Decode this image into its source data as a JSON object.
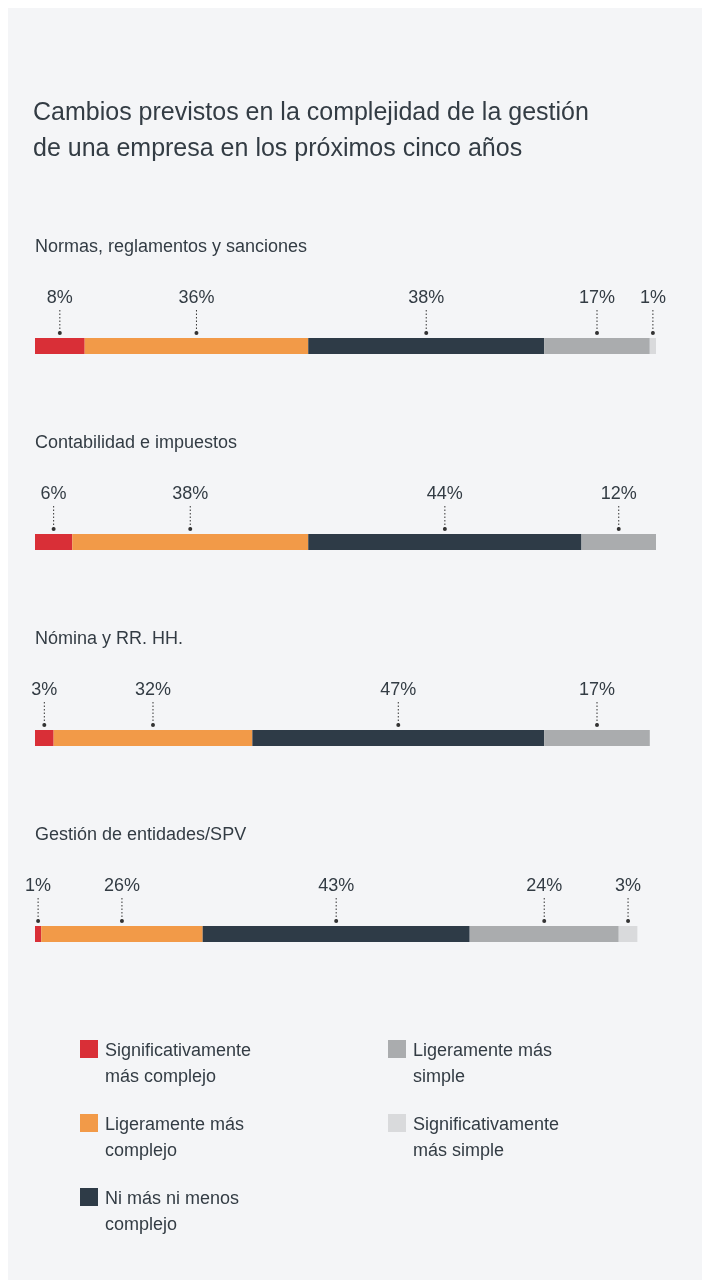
{
  "chart_data": {
    "type": "bar",
    "orientation": "horizontal",
    "stacked": true,
    "legend": "bottom",
    "title": "Cambios previstos en la complejidad de la gestión de una empresa en los próximos cinco años",
    "categories": [
      "Normas, reglamentos y sanciones",
      "Contabilidad e impuestos",
      "Nómina y RR. HH.",
      "Gestión de entidades/SPV"
    ],
    "series": [
      {
        "name": "Significativamente más complejo",
        "color": "#d92f37",
        "values": [
          8,
          6,
          3,
          1
        ],
        "value_labels": [
          "8%",
          "6%",
          "3%",
          "1%"
        ]
      },
      {
        "name": "Ligeramente más complejo",
        "color": "#f29a48",
        "values": [
          36,
          38,
          32,
          26
        ],
        "value_labels": [
          "36%",
          "38%",
          "32%",
          "26%"
        ]
      },
      {
        "name": "Ni más ni menos complejo",
        "color": "#2e3b47",
        "values": [
          38,
          44,
          47,
          43
        ],
        "value_labels": [
          "38%",
          "44%",
          "47%",
          "43%"
        ]
      },
      {
        "name": "Ligeramente más simple",
        "color": "#aaacae",
        "values": [
          17,
          12,
          17,
          24
        ],
        "value_labels": [
          "17%",
          "12%",
          "17%",
          "24%"
        ]
      },
      {
        "name": "Significativamente más simple",
        "color": "#d9dadc",
        "values": [
          1,
          null,
          null,
          3
        ],
        "value_labels": [
          "1%",
          null,
          null,
          "3%"
        ]
      }
    ]
  }
}
